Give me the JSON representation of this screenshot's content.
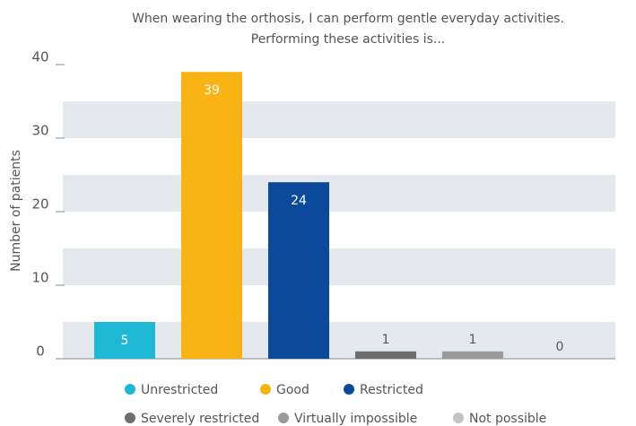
{
  "chart_data": {
    "type": "bar",
    "title": [
      "When wearing the orthosis, I can perform gentle everyday activities.",
      "Performing these activities is..."
    ],
    "y_label": "Number of patients",
    "categories": [
      "Unrestricted",
      "Good",
      "Restricted",
      "Severely restricted",
      "Virtually impossible",
      "Not possible"
    ],
    "values": [
      5,
      39,
      24,
      1,
      1,
      0
    ],
    "colors": [
      "#1fb8d4",
      "#f9b414",
      "#0b4a9b",
      "#6d6d6d",
      "#9a9a9a",
      "#c4c4c4"
    ],
    "ylim": [
      0,
      40
    ],
    "yticks": [
      0,
      10,
      20,
      30,
      40
    ],
    "grid": true
  }
}
